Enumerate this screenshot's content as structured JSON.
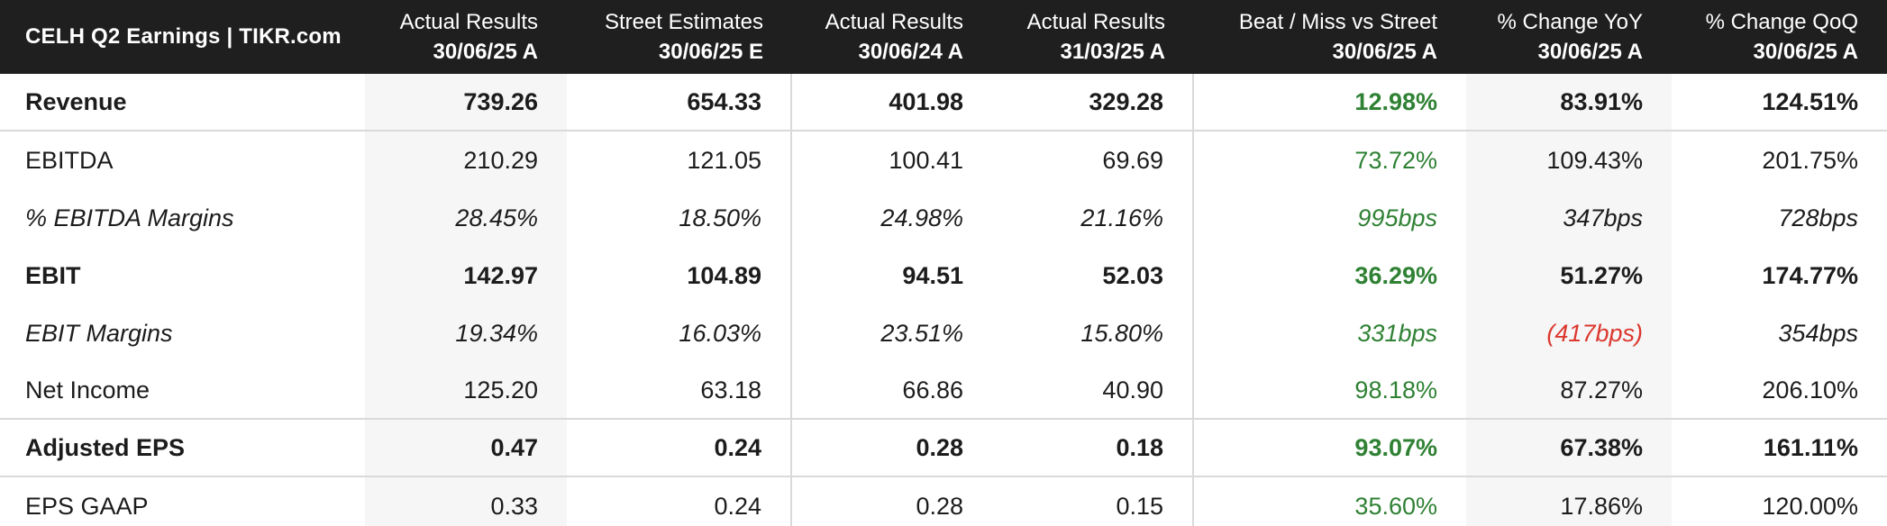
{
  "title": "CELH Q2 Earnings | TIKR.com",
  "colors": {
    "green": "#2F8134",
    "red": "#DB382E",
    "header_bg": "#1F1F1F",
    "shade": "#F6F6F6",
    "divider": "#D9D9D9",
    "text": "#1C1C1C"
  },
  "columns": [
    {
      "line1": "Actual Results",
      "line2": "30/06/25 A"
    },
    {
      "line1": "Street Estimates",
      "line2": "30/06/25 E"
    },
    {
      "line1": "Actual Results",
      "line2": "30/06/24 A"
    },
    {
      "line1": "Actual Results",
      "line2": "31/03/25 A"
    },
    {
      "line1": "Beat / Miss vs Street",
      "line2": "30/06/25 A"
    },
    {
      "line1": "% Change YoY",
      "line2": "30/06/25 A"
    },
    {
      "line1": "% Change QoQ",
      "line2": "30/06/25 A"
    }
  ],
  "rows": [
    {
      "label": "Revenue",
      "values": [
        "739.26",
        "654.33",
        "401.98",
        "329.28",
        "12.98%",
        "83.91%",
        "124.51%"
      ]
    },
    {
      "label": "EBITDA",
      "values": [
        "210.29",
        "121.05",
        "100.41",
        "69.69",
        "73.72%",
        "109.43%",
        "201.75%"
      ]
    },
    {
      "label": "% EBITDA Margins",
      "values": [
        "28.45%",
        "18.50%",
        "24.98%",
        "21.16%",
        "995bps",
        "347bps",
        "728bps"
      ]
    },
    {
      "label": "EBIT",
      "values": [
        "142.97",
        "104.89",
        "94.51",
        "52.03",
        "36.29%",
        "51.27%",
        "174.77%"
      ]
    },
    {
      "label": "EBIT Margins",
      "values": [
        "19.34%",
        "16.03%",
        "23.51%",
        "15.80%",
        "331bps",
        "(417bps)",
        "354bps"
      ]
    },
    {
      "label": "Net Income",
      "values": [
        "125.20",
        "63.18",
        "66.86",
        "40.90",
        "98.18%",
        "87.27%",
        "206.10%"
      ]
    },
    {
      "label": "Adjusted EPS",
      "values": [
        "0.47",
        "0.24",
        "0.28",
        "0.18",
        "93.07%",
        "67.38%",
        "161.11%"
      ]
    },
    {
      "label": "EPS GAAP",
      "values": [
        "0.33",
        "0.24",
        "0.28",
        "0.15",
        "35.60%",
        "17.86%",
        "120.00%"
      ]
    }
  ],
  "chart_data": {
    "type": "table",
    "title": "CELH Q2 Earnings | TIKR.com",
    "column_headers": [
      "Actual Results 30/06/25 A",
      "Street Estimates 30/06/25 E",
      "Actual Results 30/06/24 A",
      "Actual Results 31/03/25 A",
      "Beat / Miss vs Street 30/06/25 A",
      "% Change YoY 30/06/25 A",
      "% Change QoQ 30/06/25 A"
    ],
    "row_labels": [
      "Revenue",
      "EBITDA",
      "% EBITDA Margins",
      "EBIT",
      "EBIT Margins",
      "Net Income",
      "Adjusted EPS",
      "EPS GAAP"
    ],
    "cells": [
      [
        "739.26",
        "654.33",
        "401.98",
        "329.28",
        "12.98%",
        "83.91%",
        "124.51%"
      ],
      [
        "210.29",
        "121.05",
        "100.41",
        "69.69",
        "73.72%",
        "109.43%",
        "201.75%"
      ],
      [
        "28.45%",
        "18.50%",
        "24.98%",
        "21.16%",
        "995bps",
        "347bps",
        "728bps"
      ],
      [
        "142.97",
        "104.89",
        "94.51",
        "52.03",
        "36.29%",
        "51.27%",
        "174.77%"
      ],
      [
        "19.34%",
        "16.03%",
        "23.51%",
        "15.80%",
        "331bps",
        "(417bps)",
        "354bps"
      ],
      [
        "125.20",
        "63.18",
        "66.86",
        "40.90",
        "98.18%",
        "87.27%",
        "206.10%"
      ],
      [
        "0.47",
        "0.24",
        "0.28",
        "0.18",
        "93.07%",
        "67.38%",
        "161.11%"
      ],
      [
        "0.33",
        "0.24",
        "0.28",
        "0.15",
        "35.60%",
        "17.86%",
        "120.00%"
      ]
    ],
    "styling_notes": {
      "bold_rows": [
        "Revenue",
        "EBIT",
        "Adjusted EPS"
      ],
      "italic_rows": [
        "% EBITDA Margins",
        "EBIT Margins"
      ],
      "green_column": "Beat / Miss vs Street 30/06/25 A",
      "red_cells": [
        "EBIT Margins / % Change YoY = (417bps)"
      ],
      "shaded_columns": [
        "Actual Results 30/06/25 A",
        "% Change YoY 30/06/25 A"
      ]
    }
  }
}
